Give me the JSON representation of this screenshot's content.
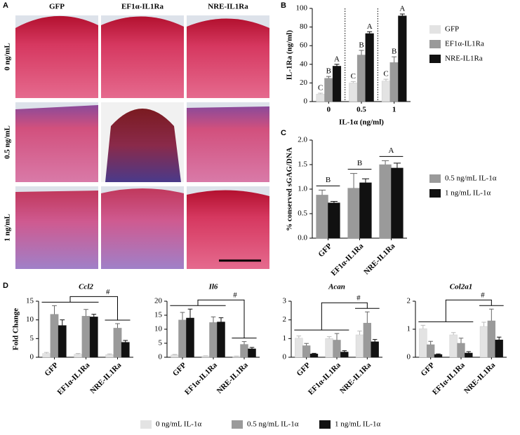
{
  "panel_labels": [
    "A",
    "B",
    "C",
    "D"
  ],
  "histology": {
    "columns": [
      "GFP",
      "EF1α-IL1Ra",
      "NRE-IL1Ra"
    ],
    "rows": [
      "0 ng/mL",
      "0.5 ng/mL",
      "1 ng/mL"
    ]
  },
  "chart_data": [
    {
      "type": "bar",
      "xlabel": "IL-1α (ng/ml)",
      "ylabel": "IL-1Ra (ng/ml)",
      "categories": [
        "0",
        "0.5",
        "1"
      ],
      "ylim": [
        0,
        100
      ],
      "yticks": [
        0,
        20,
        40,
        60,
        80,
        100
      ],
      "separators": true,
      "series": [
        {
          "name": "GFP",
          "color": "#e3e3e3",
          "values": [
            8,
            20,
            22
          ],
          "errors": [
            1,
            1.5,
            2
          ],
          "letters": [
            "C",
            "C",
            "C"
          ]
        },
        {
          "name": "EF1α-IL1Ra",
          "color": "#9a9a9a",
          "values": [
            25,
            50,
            42
          ],
          "errors": [
            2,
            5,
            6
          ],
          "letters": [
            "B",
            "B",
            "B"
          ]
        },
        {
          "name": "NRE-IL1Ra",
          "color": "#111111",
          "values": [
            38,
            73,
            92
          ],
          "errors": [
            2,
            2,
            2
          ],
          "letters": [
            "A",
            "A",
            "A"
          ]
        }
      ]
    },
    {
      "type": "bar",
      "ylabel": "% conserved sGAG/DNA",
      "categories": [
        "GFP",
        "EF1α-IL1Ra",
        "NRE-IL1Ra"
      ],
      "ylim": [
        0,
        2
      ],
      "yticks": [
        {
          "value": 0,
          "label": "0.0"
        },
        0.5,
        {
          "value": 1,
          "label": "1.0"
        },
        1.5,
        {
          "value": 2,
          "label": "2.0"
        }
      ],
      "group_letters": [
        "B",
        "B",
        "A"
      ],
      "series": [
        {
          "name": "0.5 ng/mL IL-1α",
          "color": "#9a9a9a",
          "values": [
            0.88,
            1.02,
            1.5
          ],
          "errors": [
            0.1,
            0.3,
            0.08
          ]
        },
        {
          "name": "1 ng/mL IL-1α",
          "color": "#111111",
          "values": [
            0.72,
            1.13,
            1.43
          ],
          "errors": [
            0.03,
            0.08,
            0.1
          ]
        }
      ]
    },
    {
      "type": "bar",
      "title": "Ccl2",
      "ylabel": "Fold Change",
      "annotation": "#",
      "categories": [
        "GFP",
        "EF1α-IL1Ra",
        "NRE-IL1Ra"
      ],
      "ylim": [
        0,
        15
      ],
      "yticks": [
        0,
        5,
        10,
        15
      ],
      "series": [
        {
          "name": "0 ng/mL IL-1α",
          "color": "#e3e3e3",
          "values": [
            1,
            0.8,
            0.7
          ],
          "errors": [
            0.3,
            0.2,
            0.2
          ]
        },
        {
          "name": "0.5 ng/mL IL-1α",
          "color": "#9a9a9a",
          "values": [
            11.5,
            11,
            7.8
          ],
          "errors": [
            2.3,
            1.8,
            1.2
          ]
        },
        {
          "name": "1 ng/mL IL-1α",
          "color": "#111111",
          "values": [
            8.5,
            10.8,
            4
          ],
          "errors": [
            1.5,
            0.7,
            0.5
          ]
        }
      ]
    },
    {
      "type": "bar",
      "title": "Il6",
      "annotation": "#",
      "categories": [
        "GFP",
        "EF1α-IL1Ra",
        "NRE-IL1Ra"
      ],
      "ylim": [
        0,
        20
      ],
      "yticks": [
        0,
        5,
        10,
        15,
        20
      ],
      "series": [
        {
          "color": "#e3e3e3",
          "values": [
            0.8,
            0.4,
            0.3
          ],
          "errors": [
            0.2,
            0.1,
            0.1
          ]
        },
        {
          "color": "#9a9a9a",
          "values": [
            13.3,
            12.4,
            4.6
          ],
          "errors": [
            2.7,
            2,
            1
          ]
        },
        {
          "color": "#111111",
          "values": [
            14,
            12.6,
            3
          ],
          "errors": [
            3.2,
            1.5,
            0.5
          ]
        }
      ]
    },
    {
      "type": "bar",
      "title": "Acan",
      "annotation": "#",
      "categories": [
        "GFP",
        "EF1α-IL1Ra",
        "NRE-IL1Ra"
      ],
      "ylim": [
        0,
        3
      ],
      "yticks": [
        0,
        1,
        2,
        3
      ],
      "series": [
        {
          "color": "#e3e3e3",
          "values": [
            1.02,
            1,
            1.2
          ],
          "errors": [
            0.12,
            0.1,
            0.2
          ]
        },
        {
          "color": "#9a9a9a",
          "values": [
            0.62,
            0.92,
            1.83
          ],
          "errors": [
            0.12,
            0.35,
            0.6
          ]
        },
        {
          "color": "#111111",
          "values": [
            0.18,
            0.28,
            0.83
          ],
          "errors": [
            0.03,
            0.07,
            0.12
          ]
        }
      ]
    },
    {
      "type": "bar",
      "title": "Col2a1",
      "annotation": "#",
      "categories": [
        "GFP",
        "EF1α-IL1Ra",
        "NRE-IL1Ra"
      ],
      "ylim": [
        0,
        2
      ],
      "yticks": [
        0,
        1,
        2
      ],
      "series": [
        {
          "color": "#e3e3e3",
          "values": [
            1.02,
            0.8,
            1.1
          ],
          "errors": [
            0.12,
            0.08,
            0.15
          ]
        },
        {
          "color": "#9a9a9a",
          "values": [
            0.45,
            0.5,
            1.3
          ],
          "errors": [
            0.12,
            0.18,
            0.42
          ]
        },
        {
          "color": "#111111",
          "values": [
            0.1,
            0.15,
            0.62
          ],
          "errors": [
            0.02,
            0.05,
            0.1
          ]
        }
      ]
    }
  ]
}
